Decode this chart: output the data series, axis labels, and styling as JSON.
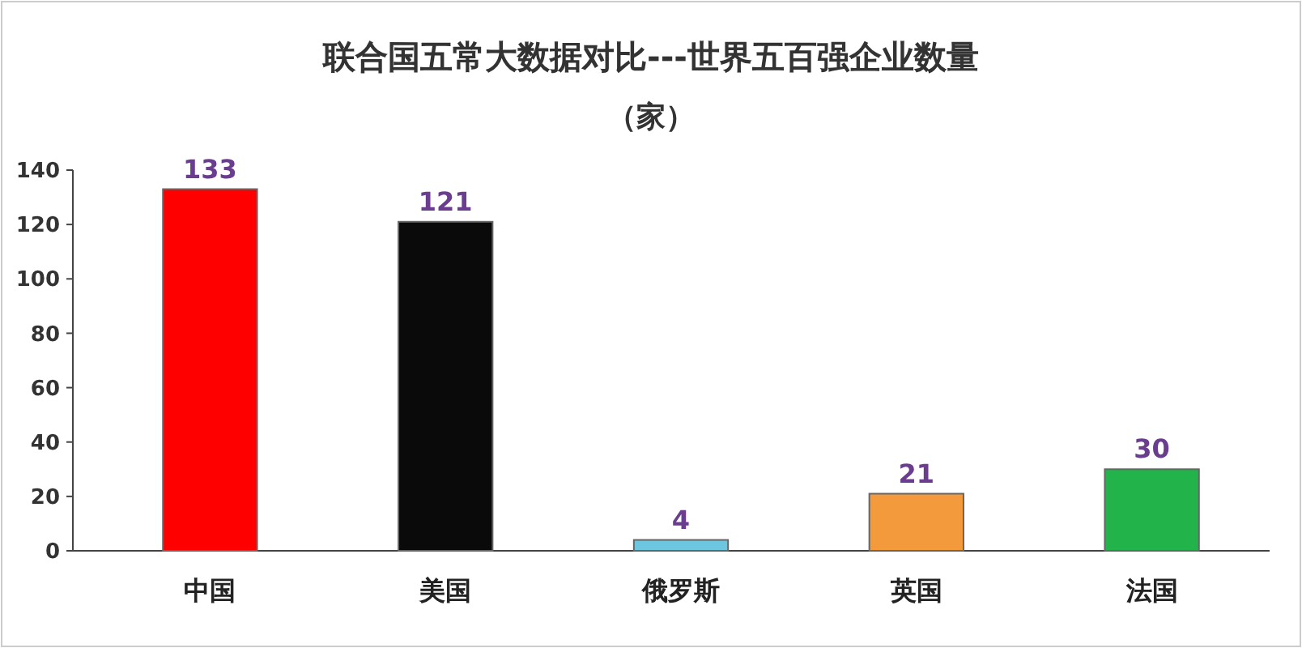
{
  "chart_data": {
    "type": "bar",
    "title": "联合国五常大数据对比---世界五百强企业数量",
    "subtitle": "（家）",
    "categories": [
      "中国",
      "美国",
      "俄罗斯",
      "英国",
      "法国"
    ],
    "values": [
      133,
      121,
      4,
      21,
      30
    ],
    "colors": [
      "#ff0000",
      "#0a0a0a",
      "#6cc6e0",
      "#f39a3c",
      "#22b44a"
    ],
    "ylim": [
      0,
      140
    ],
    "yticks": [
      0,
      20,
      40,
      60,
      80,
      100,
      120,
      140
    ],
    "data_labels": true
  }
}
